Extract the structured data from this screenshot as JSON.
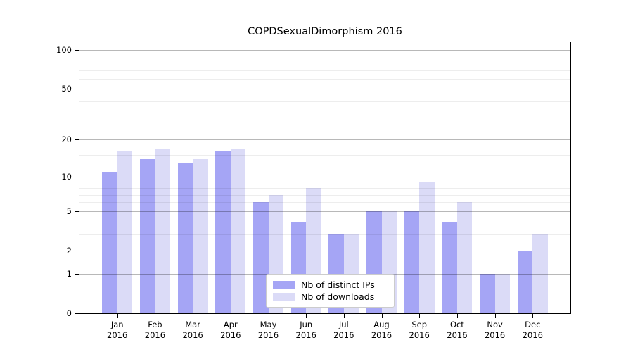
{
  "title": "COPDSexualDimorphism 2016",
  "chart_data": {
    "type": "bar",
    "title": "COPDSexualDimorphism 2016",
    "categories": [
      {
        "month": "Jan",
        "year": "2016"
      },
      {
        "month": "Feb",
        "year": "2016"
      },
      {
        "month": "Mar",
        "year": "2016"
      },
      {
        "month": "Apr",
        "year": "2016"
      },
      {
        "month": "May",
        "year": "2016"
      },
      {
        "month": "Jun",
        "year": "2016"
      },
      {
        "month": "Jul",
        "year": "2016"
      },
      {
        "month": "Aug",
        "year": "2016"
      },
      {
        "month": "Sep",
        "year": "2016"
      },
      {
        "month": "Oct",
        "year": "2016"
      },
      {
        "month": "Nov",
        "year": "2016"
      },
      {
        "month": "Dec",
        "year": "2016"
      }
    ],
    "series": [
      {
        "name": "Nb of distinct IPs",
        "color": "#a5a5f5",
        "values": [
          11,
          14,
          13,
          16,
          6,
          4,
          3,
          5,
          5,
          4,
          1,
          2
        ]
      },
      {
        "name": "Nb of downloads",
        "color": "#dbdbf7",
        "values": [
          16,
          17,
          14,
          17,
          7,
          8,
          3,
          5,
          9,
          6,
          1,
          3
        ]
      }
    ],
    "xlabel": "",
    "ylabel": "",
    "yscale": "log1p",
    "ylim": [
      0,
      110
    ],
    "yticks": [
      0,
      1,
      2,
      5,
      10,
      20,
      50,
      100
    ],
    "minor_gridlines": [
      3,
      4,
      6,
      7,
      8,
      9,
      15,
      30,
      40,
      60,
      70,
      80,
      90
    ],
    "grid": true,
    "legend_position": "bottom-center"
  }
}
